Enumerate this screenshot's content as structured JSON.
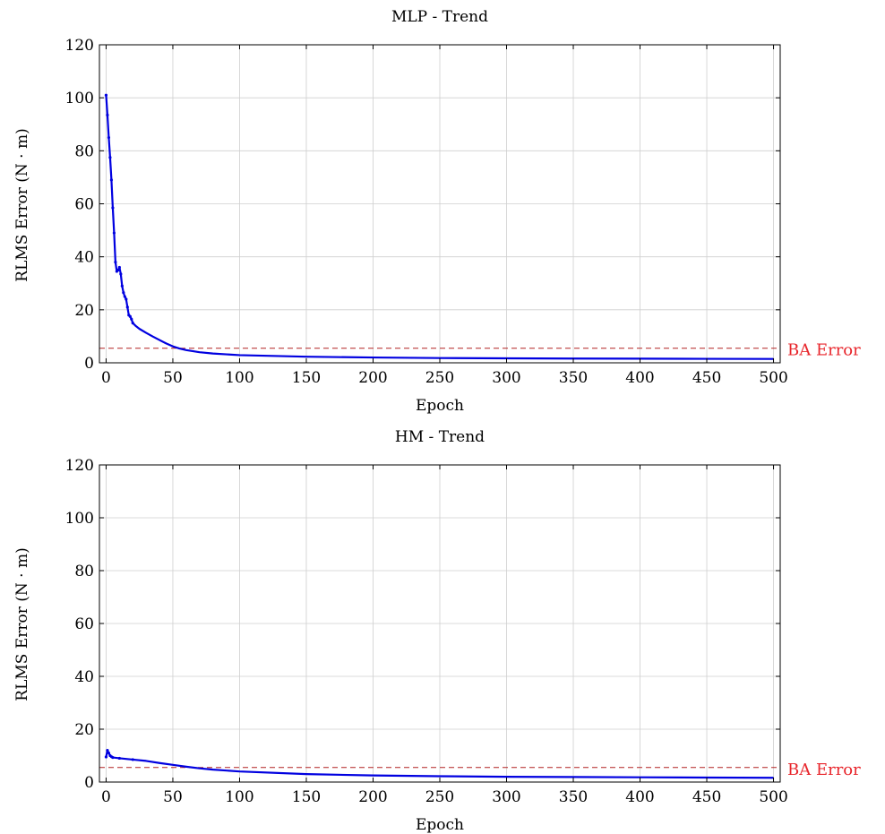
{
  "chart_data": [
    {
      "type": "line",
      "title": "MLP - Trend",
      "xlabel": "Epoch",
      "ylabel": "RLMS Error (N · m)",
      "xlim": [
        -5,
        505
      ],
      "ylim": [
        0,
        120
      ],
      "xticks": [
        0,
        50,
        100,
        150,
        200,
        250,
        300,
        350,
        400,
        450,
        500
      ],
      "yticks": [
        0,
        20,
        40,
        60,
        80,
        100,
        120
      ],
      "grid": true,
      "colors": {
        "series": "#0000e0",
        "reference": "#b22222",
        "reference_label": "#e8262c"
      },
      "series": [
        {
          "x": [
            0,
            1,
            2,
            3,
            4,
            5,
            6,
            7,
            8,
            9,
            10,
            11,
            12,
            13,
            14,
            15,
            16,
            17,
            18,
            19,
            20,
            22,
            25,
            30,
            35,
            40,
            45,
            50,
            55,
            60,
            70,
            80,
            100,
            150,
            200,
            250,
            300,
            350,
            400,
            450,
            500
          ],
          "y": [
            101,
            93.5,
            85,
            77.5,
            69,
            58.5,
            49,
            38,
            34.5,
            35,
            36,
            33.5,
            29,
            26.5,
            25,
            24,
            21,
            18,
            17.5,
            16.5,
            15,
            14,
            12.8,
            11.3,
            9.9,
            8.6,
            7.3,
            6.2,
            5.4,
            4.8,
            4.0,
            3.5,
            2.9,
            2.3,
            2.0,
            1.8,
            1.7,
            1.6,
            1.55,
            1.5,
            1.45
          ]
        }
      ],
      "reference_line": {
        "y": 5.5,
        "label": "BA Error"
      }
    },
    {
      "type": "line",
      "title": "HM - Trend",
      "xlabel": "Epoch",
      "ylabel": "RLMS Error (N · m)",
      "xlim": [
        -5,
        505
      ],
      "ylim": [
        0,
        120
      ],
      "xticks": [
        0,
        50,
        100,
        150,
        200,
        250,
        300,
        350,
        400,
        450,
        500
      ],
      "yticks": [
        0,
        20,
        40,
        60,
        80,
        100,
        120
      ],
      "grid": true,
      "colors": {
        "series": "#0000e0",
        "reference": "#b22222",
        "reference_label": "#e8262c"
      },
      "series": [
        {
          "x": [
            0,
            1,
            2,
            3,
            4,
            5,
            10,
            20,
            30,
            40,
            50,
            60,
            70,
            80,
            100,
            150,
            200,
            250,
            300,
            350,
            400,
            450,
            500
          ],
          "y": [
            9.5,
            12,
            11,
            10,
            9.6,
            9.3,
            9.0,
            8.5,
            8.0,
            7.2,
            6.5,
            5.8,
            5.2,
            4.7,
            4.0,
            3.0,
            2.5,
            2.2,
            2.0,
            1.9,
            1.8,
            1.7,
            1.6
          ]
        }
      ],
      "reference_line": {
        "y": 5.5,
        "label": "BA Error"
      }
    }
  ]
}
